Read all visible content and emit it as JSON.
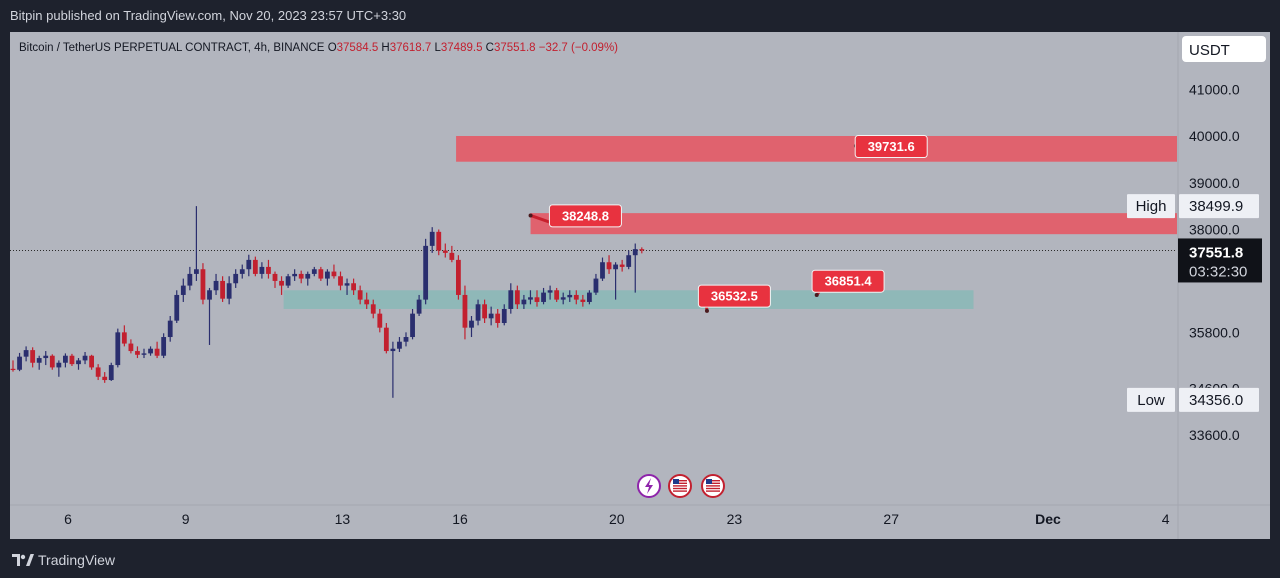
{
  "header": {
    "published": "Bitpin published on TradingView.com, Nov 20, 2023 23:57 UTC+3:30"
  },
  "footer": {
    "brand": "TradingView"
  },
  "symbol": {
    "name": "Bitcoin / TetherUS PERPETUAL CONTRACT, 4h, BINANCE",
    "o_label": "O",
    "o": "37584.5",
    "h_label": "H",
    "h": "37618.7",
    "l_label": "L",
    "l": "37489.5",
    "c_label": "C",
    "c": "37551.8",
    "change": "−32.7 (−0.09%)"
  },
  "currency": "USDT",
  "colors": {
    "up": "#2a2e6e",
    "down": "#c2202f",
    "zone_red": "#e0626e",
    "zone_green": "#8fb8b8",
    "label_red": "#e8323f"
  },
  "chart_data": {
    "type": "candlestick",
    "timeframe": "4h",
    "ylim": [
      33000,
      41700
    ],
    "x_ticks": [
      {
        "label": "6",
        "day": 6
      },
      {
        "label": "9",
        "day": 9
      },
      {
        "label": "13",
        "day": 13
      },
      {
        "label": "16",
        "day": 16
      },
      {
        "label": "20",
        "day": 20
      },
      {
        "label": "23",
        "day": 23
      },
      {
        "label": "27",
        "day": 27
      },
      {
        "label": "Dec",
        "day": 31
      },
      {
        "label": "4",
        "day": 34
      }
    ],
    "y_ticks": [
      "41000.0",
      "40000.0",
      "39000.0",
      "38000.0",
      "35800.0",
      "34600.0",
      "33600.0"
    ],
    "y_tick_values": [
      41000,
      40000,
      39000,
      38000,
      35800,
      34600,
      33600
    ],
    "markers": [
      {
        "label": "High",
        "value": "38499.9",
        "v": 38499.9
      },
      {
        "label": "Low",
        "value": "34356.0",
        "v": 34356.0
      }
    ],
    "last_price": {
      "value": "37551.8",
      "v": 37551.8,
      "countdown": "03:32:30"
    },
    "zones": [
      {
        "name": "resistance-zone-upper",
        "color": "red",
        "day_from": 15.9,
        "day_to": 35,
        "top": 40000,
        "bottom": 39450
      },
      {
        "name": "resistance-zone-lower",
        "color": "red",
        "day_from": 17.8,
        "day_to": 35,
        "top": 38350,
        "bottom": 37900
      },
      {
        "name": "support-zone",
        "color": "green",
        "day_from": 11.5,
        "day_to": 29.1,
        "top": 36700,
        "bottom": 36300
      }
    ],
    "price_labels": [
      {
        "text": "39731.6",
        "day": 27.0,
        "v": 39731.6,
        "anchor_day": 26.1,
        "anchor_v": 39790
      },
      {
        "text": "38248.8",
        "day": 19.2,
        "v": 38248.8,
        "anchor_day": 17.8,
        "anchor_v": 38300
      },
      {
        "text": "36532.5",
        "day": 23.0,
        "v": 36532.5,
        "anchor_day": 22.3,
        "anchor_v": 36260
      },
      {
        "text": "36851.4",
        "day": 25.9,
        "v": 36851.4,
        "anchor_day": 25.1,
        "anchor_v": 36600
      }
    ],
    "candles": [
      [
        35020,
        35200,
        34960,
        35000
      ],
      [
        35000,
        35360,
        34970,
        35280
      ],
      [
        35280,
        35500,
        35180,
        35420
      ],
      [
        35420,
        35480,
        35050,
        35150
      ],
      [
        35150,
        35300,
        35000,
        35250
      ],
      [
        35250,
        35400,
        35100,
        35300
      ],
      [
        35300,
        35330,
        35000,
        35050
      ],
      [
        35050,
        35200,
        34850,
        35150
      ],
      [
        35150,
        35350,
        35050,
        35300
      ],
      [
        35300,
        35340,
        35080,
        35120
      ],
      [
        35120,
        35250,
        35000,
        35200
      ],
      [
        35200,
        35380,
        35120,
        35300
      ],
      [
        35300,
        35320,
        35000,
        35050
      ],
      [
        35050,
        35120,
        34780,
        34850
      ],
      [
        34850,
        34950,
        34720,
        34780
      ],
      [
        34780,
        35150,
        34760,
        35100
      ],
      [
        35100,
        35880,
        35050,
        35800
      ],
      [
        35800,
        35950,
        35500,
        35560
      ],
      [
        35560,
        35650,
        35350,
        35400
      ],
      [
        35400,
        35500,
        35250,
        35320
      ],
      [
        35320,
        35450,
        35250,
        35350
      ],
      [
        35350,
        35500,
        35300,
        35450
      ],
      [
        35450,
        35600,
        35250,
        35300
      ],
      [
        35300,
        35780,
        35250,
        35700
      ],
      [
        35700,
        36150,
        35600,
        36050
      ],
      [
        36050,
        36700,
        36000,
        36600
      ],
      [
        36600,
        36950,
        36450,
        36800
      ],
      [
        36800,
        37200,
        36700,
        37050
      ],
      [
        37050,
        38500,
        36900,
        37150
      ],
      [
        37150,
        37280,
        36400,
        36500
      ],
      [
        36500,
        36750,
        35530,
        36700
      ],
      [
        36700,
        37050,
        36600,
        36900
      ],
      [
        36900,
        37000,
        36450,
        36520
      ],
      [
        36520,
        37000,
        36400,
        36850
      ],
      [
        36850,
        37150,
        36750,
        37050
      ],
      [
        37050,
        37250,
        36950,
        37150
      ],
      [
        37150,
        37460,
        37000,
        37350
      ],
      [
        37350,
        37420,
        37000,
        37050
      ],
      [
        37050,
        37300,
        36950,
        37200
      ],
      [
        37200,
        37350,
        36950,
        37050
      ],
      [
        37050,
        37100,
        36750,
        36900
      ],
      [
        36900,
        37000,
        36600,
        36800
      ],
      [
        36800,
        37050,
        36750,
        37000
      ],
      [
        37000,
        37150,
        36900,
        37050
      ],
      [
        37050,
        37120,
        36850,
        36950
      ],
      [
        36950,
        37100,
        36800,
        37050
      ],
      [
        37050,
        37200,
        37000,
        37150
      ],
      [
        37150,
        37200,
        36900,
        36950
      ],
      [
        36950,
        37150,
        36800,
        37100
      ],
      [
        37100,
        37250,
        36950,
        37000
      ],
      [
        37000,
        37100,
        36700,
        36800
      ],
      [
        36800,
        36950,
        36600,
        36850
      ],
      [
        36850,
        36950,
        36600,
        36700
      ],
      [
        36700,
        36800,
        36400,
        36500
      ],
      [
        36500,
        36650,
        36300,
        36400
      ],
      [
        36400,
        36500,
        36100,
        36200
      ],
      [
        36200,
        36300,
        35800,
        35900
      ],
      [
        35900,
        36000,
        35350,
        35400
      ],
      [
        35400,
        35600,
        34400,
        35450
      ],
      [
        35450,
        35700,
        35380,
        35600
      ],
      [
        35600,
        35800,
        35500,
        35700
      ],
      [
        35700,
        36300,
        35650,
        36200
      ],
      [
        36200,
        36600,
        36150,
        36500
      ],
      [
        36500,
        37800,
        36400,
        37650
      ],
      [
        37650,
        38050,
        37500,
        37950
      ],
      [
        37950,
        38000,
        37450,
        37550
      ],
      [
        37550,
        37700,
        37400,
        37500
      ],
      [
        37500,
        37650,
        37300,
        37350
      ],
      [
        37350,
        37450,
        36500,
        36600
      ],
      [
        36600,
        36800,
        35650,
        35900
      ],
      [
        35900,
        36150,
        35700,
        36050
      ],
      [
        36050,
        36500,
        35950,
        36400
      ],
      [
        36400,
        36500,
        36000,
        36100
      ],
      [
        36100,
        36350,
        35950,
        36200
      ],
      [
        36200,
        36300,
        35900,
        36000
      ],
      [
        36000,
        36400,
        35950,
        36300
      ],
      [
        36300,
        36850,
        36200,
        36700
      ],
      [
        36700,
        36800,
        36300,
        36400
      ],
      [
        36400,
        36600,
        36300,
        36500
      ],
      [
        36500,
        36700,
        36400,
        36550
      ],
      [
        36550,
        36700,
        36350,
        36450
      ],
      [
        36450,
        36750,
        36400,
        36650
      ],
      [
        36650,
        36800,
        36500,
        36700
      ],
      [
        36700,
        36750,
        36450,
        36500
      ],
      [
        36500,
        36650,
        36400,
        36550
      ],
      [
        36550,
        36700,
        36450,
        36600
      ],
      [
        36600,
        36700,
        36400,
        36500
      ],
      [
        36500,
        36600,
        36350,
        36450
      ],
      [
        36450,
        36700,
        36400,
        36650
      ],
      [
        36650,
        37050,
        36600,
        36950
      ],
      [
        36950,
        37400,
        36900,
        37300
      ],
      [
        37300,
        37450,
        37050,
        37150
      ],
      [
        37150,
        37300,
        36500,
        37250
      ],
      [
        37250,
        37350,
        37100,
        37200
      ],
      [
        37200,
        37550,
        37150,
        37450
      ],
      [
        37450,
        37700,
        36650,
        37580
      ],
      [
        37580,
        37618,
        37490,
        37552
      ]
    ]
  }
}
